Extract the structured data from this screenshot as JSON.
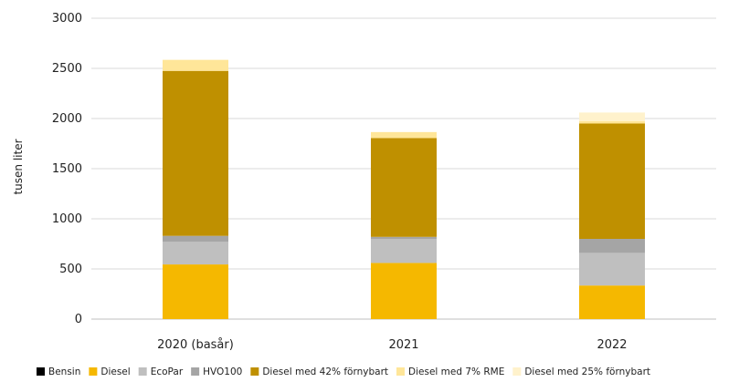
{
  "chart_data": {
    "type": "bar",
    "stacked": true,
    "categories": [
      "2020 (basår)",
      "2021",
      "2022"
    ],
    "ylabel": "tusen liter",
    "ylim": [
      0,
      3000
    ],
    "yticks": [
      "0",
      "500",
      "1000",
      "1500",
      "2000",
      "2500",
      "3000"
    ],
    "grid": true,
    "legend_position": "bottom",
    "series": [
      {
        "name": "Bensin",
        "color": "#000000",
        "values": [
          0,
          0,
          0
        ]
      },
      {
        "name": "Diesel",
        "color": "#F5B800",
        "values": [
          545,
          560,
          335
        ]
      },
      {
        "name": "EcoPar",
        "color": "#BFBFBF",
        "values": [
          225,
          240,
          325
        ]
      },
      {
        "name": "HVO100",
        "color": "#A5A5A5",
        "values": [
          60,
          20,
          140
        ]
      },
      {
        "name": "Diesel med 42% förnybart",
        "color": "#BF9000",
        "values": [
          1645,
          985,
          1150
        ]
      },
      {
        "name": "Diesel med 7% RME",
        "color": "#FFE699",
        "values": [
          110,
          60,
          25
        ]
      },
      {
        "name": "Diesel med 25% förnybart",
        "color": "#FFF2CC",
        "values": [
          0,
          0,
          85
        ]
      }
    ]
  }
}
